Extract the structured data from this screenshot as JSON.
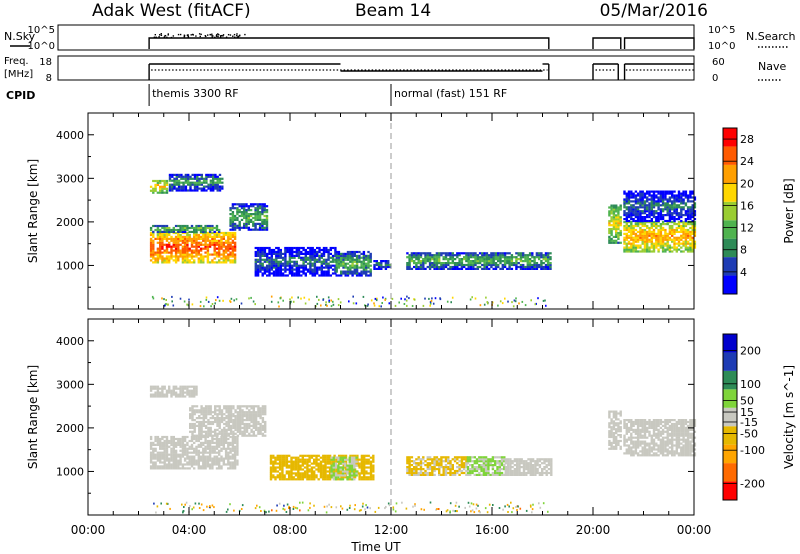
{
  "header": {
    "site": "Adak West (fitACF)",
    "beam": "Beam 14",
    "date": "05/Mar/2016"
  },
  "strip_labels": {
    "nsky": "N.Sky",
    "freq_line1": "Freq.",
    "freq_line2": "[MHz]",
    "cpid": "CPID",
    "nsearch": "N.Search",
    "nave": "Nave"
  },
  "strip_ticks": {
    "nsky_left": [
      "10^5",
      "10^0"
    ],
    "nsky_right": [
      "10^5",
      "10^0"
    ],
    "freq_left": [
      "18",
      "8"
    ],
    "freq_right": [
      "60",
      "0"
    ]
  },
  "cpid_modes": [
    {
      "label": "themis 3300 RF",
      "start_hour": 2.42
    },
    {
      "label": "normal (fast) 151 RF",
      "start_hour": 12.0
    }
  ],
  "chart_data": [
    {
      "type": "heatmap",
      "title": "",
      "panel": "power",
      "xlabel": "Time UT",
      "ylabel": "Slant Range [km]",
      "x_ticks": [
        "00:00",
        "04:00",
        "08:00",
        "12:00",
        "16:00",
        "20:00",
        "00:00"
      ],
      "xlim_hours": [
        0,
        24
      ],
      "ylim": [
        0,
        4500
      ],
      "y_ticks": [
        1000,
        2000,
        3000,
        4000
      ],
      "colorbar": {
        "label": "Power [dB]",
        "ticks": [
          4,
          8,
          12,
          16,
          20,
          24,
          28
        ],
        "range": [
          0,
          30
        ],
        "colors": [
          "#0000ff",
          "#1e3cb4",
          "#2e8b57",
          "#4fb34f",
          "#9acd32",
          "#ffd700",
          "#ff9f00",
          "#ff5a00",
          "#ff0000"
        ]
      },
      "echo_regions": [
        {
          "t": [
            2.45,
            5.85
          ],
          "r": [
            1050,
            1750
          ],
          "level": 26
        },
        {
          "t": [
            2.45,
            5.2
          ],
          "r": [
            1750,
            1900
          ],
          "level": 14
        },
        {
          "t": [
            2.45,
            3.1
          ],
          "r": [
            2650,
            2950
          ],
          "level": 20
        },
        {
          "t": [
            3.2,
            5.3
          ],
          "r": [
            2700,
            3100
          ],
          "level": 10
        },
        {
          "t": [
            5.6,
            7.1
          ],
          "r": [
            1800,
            2400
          ],
          "level": 12
        },
        {
          "t": [
            6.6,
            9.8
          ],
          "r": [
            750,
            1400
          ],
          "level": 8
        },
        {
          "t": [
            9.8,
            11.2
          ],
          "r": [
            750,
            1300
          ],
          "level": 12
        },
        {
          "t": [
            11.3,
            12.0
          ],
          "r": [
            900,
            1100
          ],
          "level": 9
        },
        {
          "t": [
            12.6,
            18.3
          ],
          "r": [
            900,
            1300
          ],
          "level": 12
        },
        {
          "t": [
            20.6,
            21.1
          ],
          "r": [
            1500,
            2400
          ],
          "level": 18
        },
        {
          "t": [
            21.2,
            24.0
          ],
          "r": [
            1300,
            2000
          ],
          "level": 22
        },
        {
          "t": [
            21.2,
            24.0
          ],
          "r": [
            2000,
            2700
          ],
          "level": 8
        }
      ]
    },
    {
      "type": "heatmap",
      "title": "",
      "panel": "velocity",
      "xlabel": "Time UT",
      "ylabel": "Slant Range [km]",
      "x_ticks": [
        "00:00",
        "04:00",
        "08:00",
        "12:00",
        "16:00",
        "20:00",
        "00:00"
      ],
      "xlim_hours": [
        0,
        24
      ],
      "ylim": [
        0,
        4500
      ],
      "y_ticks": [
        1000,
        2000,
        3000,
        4000
      ],
      "colorbar": {
        "label": "Velocity [m s^-1]",
        "ticks": [
          -200,
          -100,
          -50,
          -15,
          15,
          50,
          100,
          200
        ],
        "range": [
          -250,
          250
        ],
        "colors": [
          "#ff0000",
          "#ff6a00",
          "#ffa500",
          "#e6b800",
          "#c8c8c0",
          "#7fd43a",
          "#2e8b57",
          "#1e3cb4",
          "#0000cd"
        ]
      },
      "echo_regions": [
        {
          "t": [
            2.45,
            5.9
          ],
          "r": [
            1050,
            1800
          ],
          "level": 0
        },
        {
          "t": [
            2.45,
            4.3
          ],
          "r": [
            2700,
            2950
          ],
          "level": 0
        },
        {
          "t": [
            4.0,
            7.0
          ],
          "r": [
            1800,
            2500
          ],
          "level": 0
        },
        {
          "t": [
            7.2,
            11.3
          ],
          "r": [
            800,
            1350
          ],
          "level": -40
        },
        {
          "t": [
            9.6,
            10.6
          ],
          "r": [
            800,
            1300
          ],
          "level": 30
        },
        {
          "t": [
            12.6,
            15.0
          ],
          "r": [
            900,
            1350
          ],
          "level": -30
        },
        {
          "t": [
            15.0,
            16.5
          ],
          "r": [
            900,
            1350
          ],
          "level": 30
        },
        {
          "t": [
            16.5,
            18.3
          ],
          "r": [
            900,
            1300
          ],
          "level": 0
        },
        {
          "t": [
            20.6,
            21.1
          ],
          "r": [
            1500,
            2400
          ],
          "level": 0
        },
        {
          "t": [
            21.2,
            24.0
          ],
          "r": [
            1350,
            2200
          ],
          "level": 0
        }
      ]
    }
  ]
}
